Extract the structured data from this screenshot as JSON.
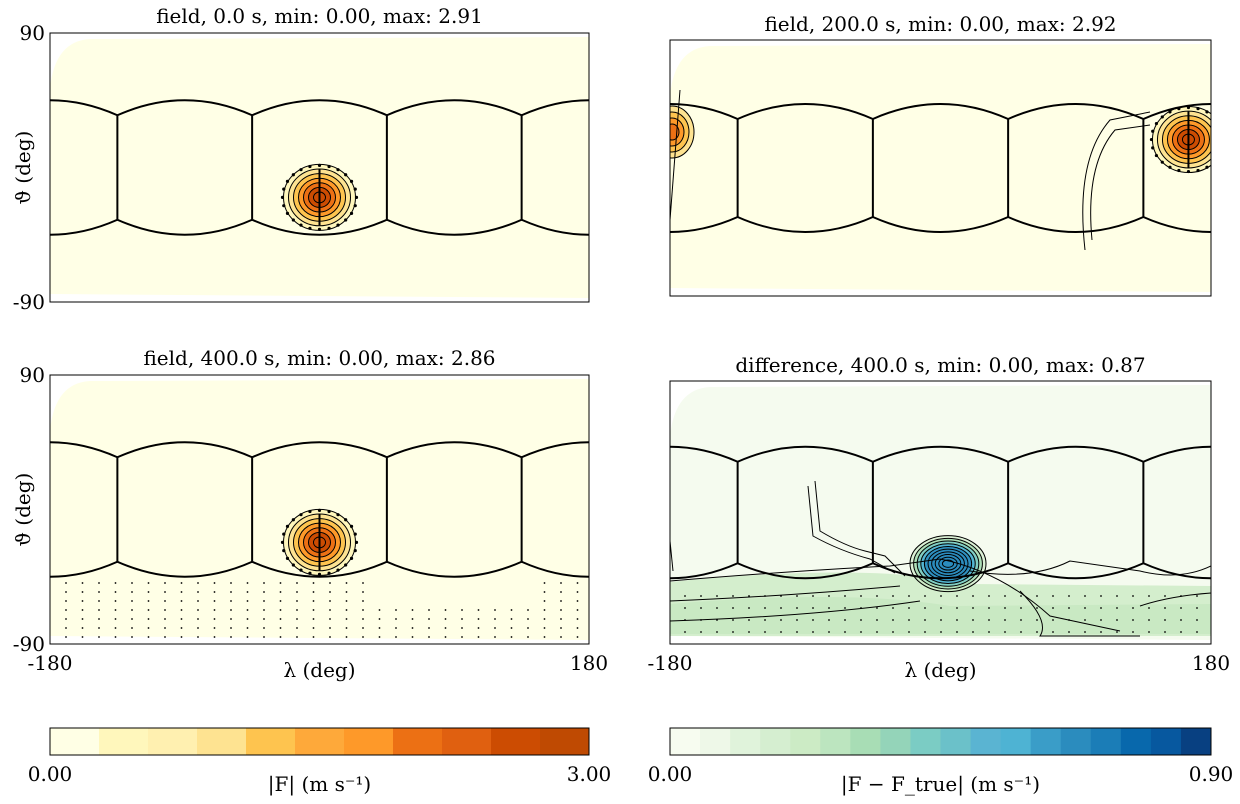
{
  "chart_data": [
    {
      "type": "heatmap",
      "title": "field, 0.0 s, min: 0.00, max: 2.91",
      "ylabel": "ϑ (deg)",
      "xlabel": "",
      "yticks": [
        "90",
        "-90"
      ],
      "xticks": [],
      "xlim": [
        -180,
        180
      ],
      "ylim": [
        -90,
        90
      ],
      "colormap": "YlOrBr",
      "blob": {
        "lon": 0,
        "lat": -20,
        "peak": 2.91
      },
      "grid_lines": true
    },
    {
      "type": "heatmap",
      "title": "field, 200.0 s, min: 0.00, max: 2.92",
      "ylabel": "",
      "xlabel": "",
      "yticks": [],
      "xticks": [],
      "xlim": [
        -180,
        180
      ],
      "ylim": [
        -90,
        90
      ],
      "colormap": "YlOrBr",
      "blob": {
        "lon": 165,
        "lat": 20,
        "peak": 2.92
      },
      "grid_lines": true
    },
    {
      "type": "heatmap",
      "title": "field, 400.0 s, min: 0.00, max: 2.86",
      "ylabel": "ϑ (deg)",
      "xlabel": "λ (deg)",
      "yticks": [
        "90",
        "-90"
      ],
      "xticks": [
        "-180",
        "180"
      ],
      "xlim": [
        -180,
        180
      ],
      "ylim": [
        -90,
        90
      ],
      "colormap": "YlOrBr",
      "blob": {
        "lon": 0,
        "lat": -22,
        "peak": 2.86
      },
      "grid_lines": true
    },
    {
      "type": "heatmap",
      "title": "difference, 400.0 s, min: 0.00, max: 0.87",
      "ylabel": "",
      "xlabel": "λ (deg)",
      "yticks": [],
      "xticks": [
        "-180",
        "180"
      ],
      "xlim": [
        -180,
        180
      ],
      "ylim": [
        -90,
        90
      ],
      "colormap": "GnBu",
      "blob": {
        "lon": 5,
        "lat": -35,
        "peak": 0.87
      },
      "grid_lines": true
    }
  ],
  "colorbars": [
    {
      "label": "|F| (m s⁻¹)",
      "min_label": "0.00",
      "max_label": "3.00",
      "colors": [
        "#ffffe5",
        "#fff7bc",
        "#fff0b0",
        "#fee391",
        "#fec44f",
        "#fea93a",
        "#fe9929",
        "#ec7014",
        "#e06010",
        "#cc4c02",
        "#bf4a02"
      ]
    },
    {
      "label": "|F − F_true| (m s⁻¹)",
      "min_label": "0.00",
      "max_label": "0.90",
      "colors": [
        "#f7fcf0",
        "#eef8e8",
        "#e0f3db",
        "#d5eed0",
        "#ccebc5",
        "#bce5bf",
        "#a8ddb5",
        "#94d4b9",
        "#7bccc4",
        "#6bc1c9",
        "#5ab4d2",
        "#4eb3d3",
        "#3a9dc8",
        "#2b8cbe",
        "#1b7db7",
        "#0868ac",
        "#07589f",
        "#084081"
      ]
    }
  ]
}
